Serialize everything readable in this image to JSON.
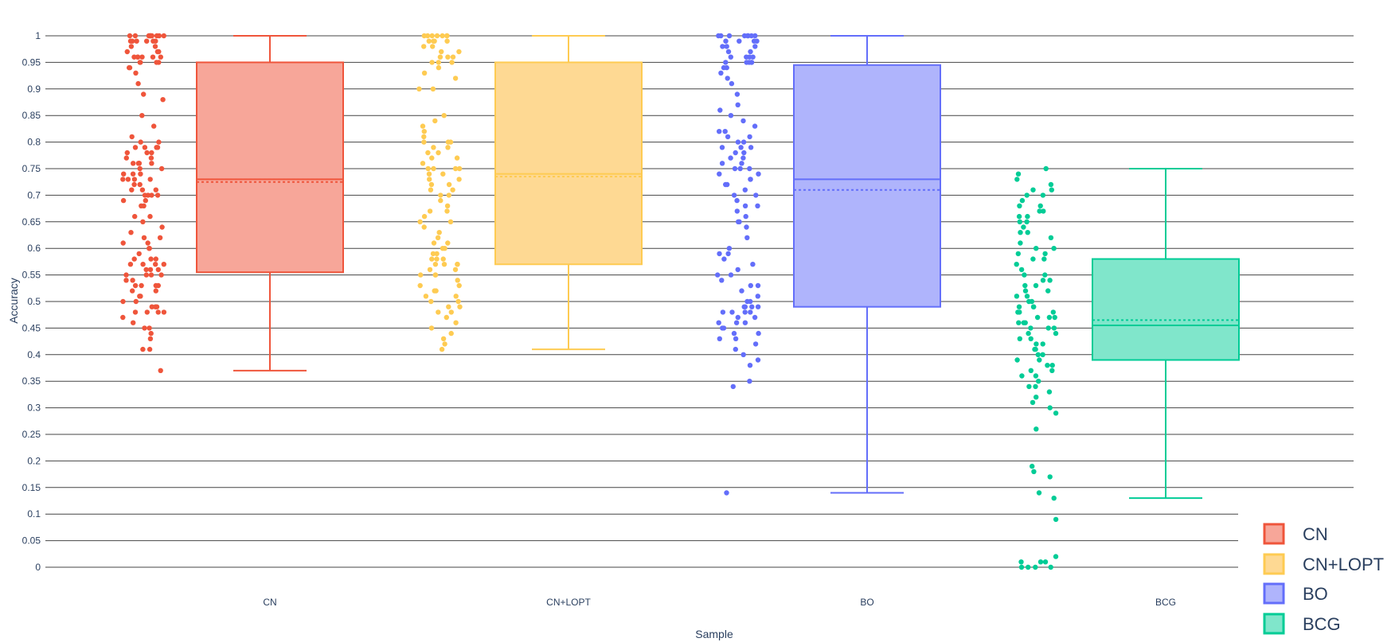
{
  "chart_data": {
    "type": "box",
    "xlabel": "Sample",
    "ylabel": "Accuracy",
    "categories": [
      "CN",
      "CN+LOPT",
      "BO",
      "BCG"
    ],
    "ylim": [
      0,
      1
    ],
    "yticks": [
      0,
      0.05,
      0.1,
      0.15,
      0.2,
      0.25,
      0.3,
      0.35,
      0.4,
      0.45,
      0.5,
      0.55,
      0.6,
      0.65,
      0.7,
      0.75,
      0.8,
      0.85,
      0.9,
      0.95,
      1
    ],
    "grid": true,
    "boxpoints": "all",
    "boxmean": true,
    "legend_position": "bottom-right",
    "series": [
      {
        "name": "CN",
        "color": "#EF553B",
        "fill": "#F7A699",
        "min": 0.37,
        "q1": 0.555,
        "median": 0.73,
        "mean": 0.725,
        "q3": 0.95,
        "max": 1.0,
        "points": [
          1,
          1,
          1,
          1,
          1,
          1,
          1,
          1,
          1,
          1,
          0.99,
          0.99,
          0.99,
          0.99,
          0.99,
          0.99,
          0.98,
          0.98,
          0.97,
          0.97,
          0.97,
          0.96,
          0.96,
          0.96,
          0.96,
          0.96,
          0.96,
          0.95,
          0.95,
          0.95,
          0.95,
          0.94,
          0.94,
          0.93,
          0.91,
          0.89,
          0.88,
          0.85,
          0.83,
          0.81,
          0.8,
          0.8,
          0.79,
          0.79,
          0.79,
          0.79,
          0.78,
          0.78,
          0.78,
          0.77,
          0.77,
          0.76,
          0.76,
          0.76,
          0.76,
          0.76,
          0.75,
          0.75,
          0.74,
          0.74,
          0.74,
          0.73,
          0.73,
          0.73,
          0.73,
          0.72,
          0.72,
          0.71,
          0.71,
          0.71,
          0.7,
          0.7,
          0.7,
          0.7,
          0.69,
          0.69,
          0.68,
          0.68,
          0.66,
          0.66,
          0.65,
          0.64,
          0.63,
          0.62,
          0.62,
          0.61,
          0.61,
          0.6,
          0.6,
          0.59,
          0.58,
          0.58,
          0.58,
          0.57,
          0.57,
          0.57,
          0.57,
          0.56,
          0.56,
          0.56,
          0.55,
          0.55,
          0.55,
          0.55,
          0.54,
          0.54,
          0.53,
          0.53,
          0.53,
          0.53,
          0.52,
          0.52,
          0.51,
          0.51,
          0.5,
          0.5,
          0.49,
          0.49,
          0.49,
          0.48,
          0.48,
          0.48,
          0.48,
          0.47,
          0.46,
          0.45,
          0.45,
          0.44,
          0.43,
          0.41,
          0.41,
          0.37
        ]
      },
      {
        "name": "CN+LOPT",
        "color": "#FECB52",
        "fill": "#FED993",
        "min": 0.41,
        "q1": 0.57,
        "median": 0.74,
        "mean": 0.735,
        "q3": 0.95,
        "max": 1.0,
        "points": [
          1,
          1,
          1,
          1,
          1,
          1,
          1,
          0.99,
          0.99,
          0.99,
          0.99,
          0.98,
          0.98,
          0.97,
          0.97,
          0.96,
          0.96,
          0.96,
          0.95,
          0.95,
          0.95,
          0.94,
          0.93,
          0.92,
          0.9,
          0.9,
          0.85,
          0.84,
          0.83,
          0.82,
          0.81,
          0.8,
          0.8,
          0.8,
          0.79,
          0.79,
          0.78,
          0.78,
          0.77,
          0.77,
          0.76,
          0.75,
          0.75,
          0.75,
          0.75,
          0.74,
          0.74,
          0.73,
          0.73,
          0.72,
          0.72,
          0.71,
          0.71,
          0.7,
          0.7,
          0.69,
          0.68,
          0.67,
          0.67,
          0.66,
          0.65,
          0.65,
          0.64,
          0.63,
          0.62,
          0.61,
          0.61,
          0.6,
          0.6,
          0.59,
          0.59,
          0.58,
          0.58,
          0.58,
          0.57,
          0.57,
          0.57,
          0.57,
          0.56,
          0.56,
          0.55,
          0.55,
          0.55,
          0.54,
          0.53,
          0.53,
          0.52,
          0.52,
          0.51,
          0.51,
          0.5,
          0.5,
          0.49,
          0.49,
          0.48,
          0.48,
          0.47,
          0.46,
          0.45,
          0.44,
          0.43,
          0.42,
          0.41
        ]
      },
      {
        "name": "BO",
        "color": "#636EFA",
        "fill": "#AFB4FC",
        "min": 0.14,
        "q1": 0.49,
        "median": 0.73,
        "mean": 0.71,
        "q3": 0.945,
        "max": 1.0,
        "points": [
          1,
          1,
          1,
          1,
          1,
          1,
          1,
          1,
          0.99,
          0.99,
          0.99,
          0.99,
          0.98,
          0.98,
          0.98,
          0.97,
          0.97,
          0.96,
          0.96,
          0.96,
          0.96,
          0.95,
          0.95,
          0.95,
          0.95,
          0.95,
          0.94,
          0.94,
          0.93,
          0.92,
          0.91,
          0.89,
          0.87,
          0.86,
          0.85,
          0.84,
          0.83,
          0.82,
          0.82,
          0.81,
          0.81,
          0.8,
          0.8,
          0.79,
          0.79,
          0.79,
          0.78,
          0.78,
          0.77,
          0.77,
          0.76,
          0.76,
          0.75,
          0.75,
          0.75,
          0.74,
          0.74,
          0.73,
          0.73,
          0.72,
          0.72,
          0.71,
          0.7,
          0.7,
          0.69,
          0.68,
          0.68,
          0.67,
          0.66,
          0.65,
          0.65,
          0.64,
          0.62,
          0.6,
          0.59,
          0.59,
          0.58,
          0.57,
          0.56,
          0.55,
          0.55,
          0.54,
          0.53,
          0.53,
          0.52,
          0.51,
          0.5,
          0.5,
          0.49,
          0.49,
          0.49,
          0.49,
          0.48,
          0.48,
          0.48,
          0.48,
          0.47,
          0.47,
          0.46,
          0.46,
          0.46,
          0.45,
          0.45,
          0.44,
          0.44,
          0.43,
          0.43,
          0.42,
          0.41,
          0.4,
          0.39,
          0.38,
          0.35,
          0.34,
          0.14
        ]
      },
      {
        "name": "BCG",
        "color": "#00CC96",
        "fill": "#80E6CB",
        "min": 0.13,
        "q1": 0.39,
        "median": 0.455,
        "mean": 0.465,
        "q3": 0.58,
        "max": 0.75,
        "points": [
          0.75,
          0.74,
          0.73,
          0.72,
          0.71,
          0.71,
          0.7,
          0.7,
          0.69,
          0.68,
          0.68,
          0.67,
          0.67,
          0.66,
          0.66,
          0.65,
          0.65,
          0.64,
          0.63,
          0.63,
          0.62,
          0.61,
          0.6,
          0.6,
          0.59,
          0.59,
          0.58,
          0.58,
          0.57,
          0.56,
          0.55,
          0.55,
          0.54,
          0.54,
          0.53,
          0.53,
          0.52,
          0.52,
          0.51,
          0.51,
          0.5,
          0.5,
          0.49,
          0.49,
          0.49,
          0.48,
          0.48,
          0.48,
          0.47,
          0.47,
          0.47,
          0.46,
          0.46,
          0.46,
          0.45,
          0.45,
          0.45,
          0.44,
          0.44,
          0.43,
          0.43,
          0.42,
          0.42,
          0.41,
          0.41,
          0.4,
          0.4,
          0.39,
          0.39,
          0.38,
          0.38,
          0.37,
          0.37,
          0.36,
          0.36,
          0.35,
          0.34,
          0.34,
          0.33,
          0.32,
          0.31,
          0.3,
          0.29,
          0.26,
          0.19,
          0.18,
          0.17,
          0.14,
          0.13,
          0.09,
          0.02,
          0.01,
          0.01,
          0.01,
          0,
          0,
          0,
          0
        ]
      }
    ]
  }
}
